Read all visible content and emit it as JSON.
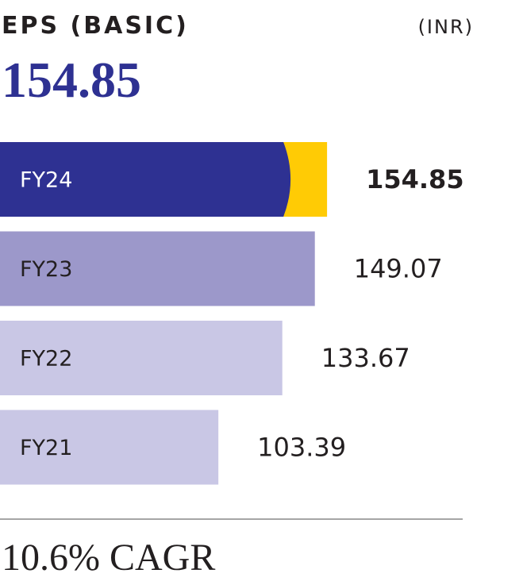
{
  "chart_data": {
    "type": "bar",
    "orientation": "horizontal",
    "title": "EPS (BASIC)",
    "unit": "(INR)",
    "headline": 154.85,
    "categories": [
      "FY24",
      "FY23",
      "FY22",
      "FY21"
    ],
    "values": [
      154.85,
      149.07,
      133.67,
      103.39
    ],
    "colors": [
      "#2e3192",
      "#9c98ca",
      "#c9c7e5",
      "#c9c7e5"
    ],
    "label_colors": [
      "#ffffff",
      "#231f20",
      "#231f20",
      "#231f20"
    ],
    "accent_color": "#ffcb05",
    "xlim": [
      0,
      248
    ],
    "footer": "10.6% CAGR"
  }
}
